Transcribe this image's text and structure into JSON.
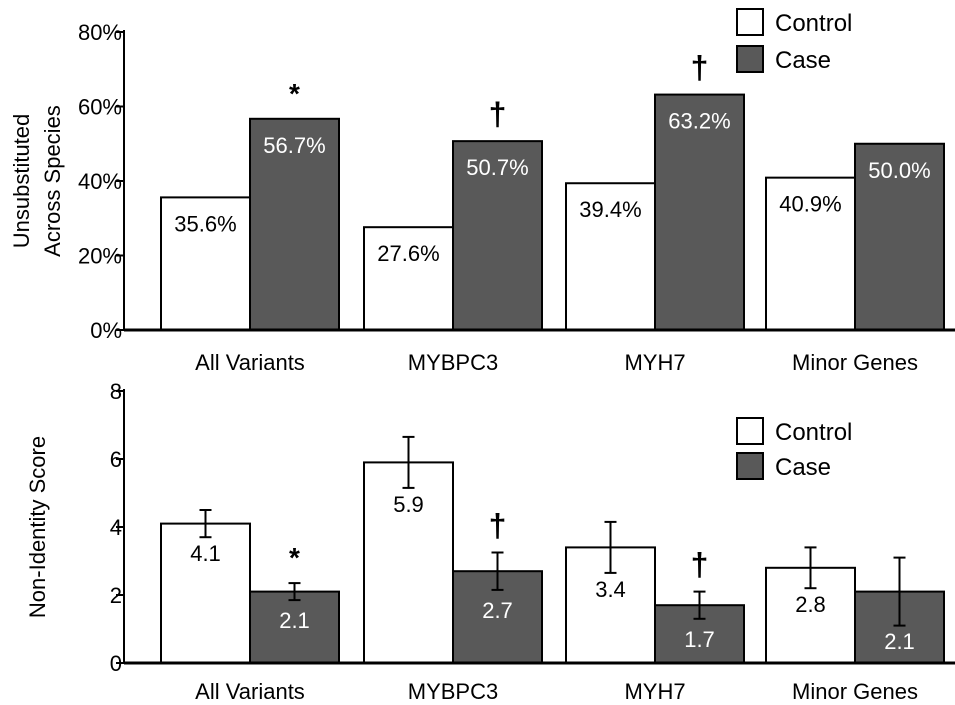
{
  "colors": {
    "control": "#ffffff",
    "case": "#595959",
    "edge": "#000000"
  },
  "chart_data": [
    {
      "type": "bar",
      "categories": [
        "All Variants",
        "MYBPC3",
        "MYH7",
        "Minor Genes"
      ],
      "ylabel": "Unsubstituted\nAcross Species",
      "ylim": [
        0,
        80
      ],
      "yticks": [
        "0%",
        "20%",
        "40%",
        "60%",
        "80%"
      ],
      "yunit": "%",
      "legend_position": "top-right",
      "series": [
        {
          "name": "Control",
          "values": [
            35.6,
            27.6,
            39.4,
            40.9
          ],
          "labels": [
            "35.6%",
            "27.6%",
            "39.4%",
            "40.9%"
          ]
        },
        {
          "name": "Case",
          "values": [
            56.7,
            50.7,
            63.2,
            50.0
          ],
          "labels": [
            "56.7%",
            "50.7%",
            "63.2%",
            "50.0%"
          ]
        }
      ],
      "annotations": [
        "*",
        "†",
        "†",
        ""
      ]
    },
    {
      "type": "bar",
      "categories": [
        "All Variants",
        "MYBPC3",
        "MYH7",
        "Minor Genes"
      ],
      "ylabel": "Non-Identity Score",
      "ylim": [
        0,
        8
      ],
      "yticks": [
        "0",
        "2",
        "4",
        "6",
        "8"
      ],
      "legend_position": "top-right",
      "series": [
        {
          "name": "Control",
          "values": [
            4.1,
            5.9,
            3.4,
            2.8
          ],
          "errors": [
            0.4,
            0.75,
            0.75,
            0.6
          ],
          "labels": [
            "4.1",
            "5.9",
            "3.4",
            "2.8"
          ]
        },
        {
          "name": "Case",
          "values": [
            2.1,
            2.7,
            1.7,
            2.1
          ],
          "errors": [
            0.25,
            0.55,
            0.4,
            1.0
          ],
          "labels": [
            "2.1",
            "2.7",
            "1.7",
            "2.1"
          ]
        }
      ],
      "annotations": [
        "*",
        "†",
        "†",
        ""
      ]
    }
  ]
}
